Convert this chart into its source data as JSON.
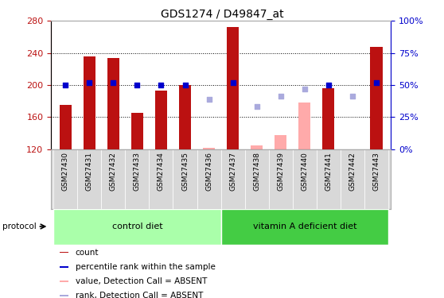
{
  "title": "GDS1274 / D49847_at",
  "samples": [
    "GSM27430",
    "GSM27431",
    "GSM27432",
    "GSM27433",
    "GSM27434",
    "GSM27435",
    "GSM27436",
    "GSM27437",
    "GSM27438",
    "GSM27439",
    "GSM27440",
    "GSM27441",
    "GSM27442",
    "GSM27443"
  ],
  "bar_values": [
    175,
    236,
    234,
    165,
    193,
    200,
    null,
    272,
    null,
    null,
    null,
    196,
    null,
    248
  ],
  "bar_absent": [
    null,
    null,
    null,
    null,
    null,
    null,
    121,
    null,
    124,
    137,
    178,
    null,
    120,
    null
  ],
  "rank_present_pct": [
    50,
    52,
    52,
    50,
    50,
    50,
    null,
    52,
    null,
    null,
    null,
    50,
    null,
    52
  ],
  "rank_absent_pct": [
    null,
    null,
    null,
    null,
    null,
    null,
    39,
    null,
    33,
    41,
    47,
    null,
    41,
    null
  ],
  "ylim_left": [
    120,
    280
  ],
  "ylim_right": [
    0,
    100
  ],
  "left_ticks": [
    120,
    160,
    200,
    240,
    280
  ],
  "right_ticks": [
    0,
    25,
    50,
    75,
    100
  ],
  "right_tick_labels": [
    "0%",
    "25%",
    "50%",
    "75%",
    "100%"
  ],
  "control_diet_indices": [
    0,
    1,
    2,
    3,
    4,
    5,
    6
  ],
  "vitamin_indices": [
    7,
    8,
    9,
    10,
    11,
    12,
    13
  ],
  "bar_color": "#BB1111",
  "bar_absent_color": "#FFAAAA",
  "rank_color": "#0000CC",
  "rank_absent_color": "#AAAADD",
  "control_color": "#AAFFAA",
  "vitamin_color": "#44CC44"
}
